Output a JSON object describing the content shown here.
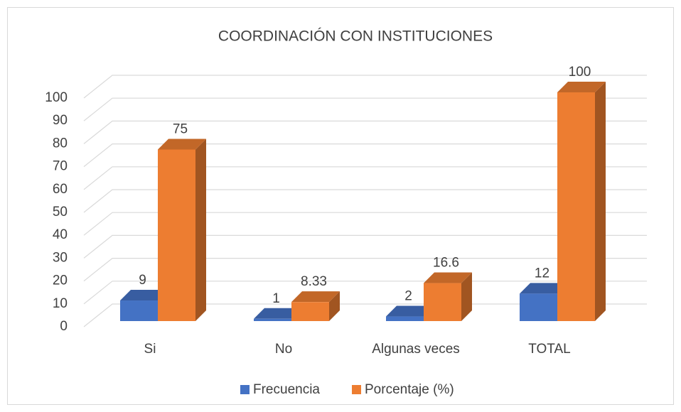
{
  "chart_data": {
    "type": "bar3d",
    "title": "COORDINACIÓN CON INSTITUCIONES",
    "categories": [
      "Si",
      "No",
      "Algunas veces",
      "TOTAL"
    ],
    "series": [
      {
        "name": "Frecuencia",
        "color": "#4472c4",
        "values": [
          9,
          1,
          2,
          12
        ]
      },
      {
        "name": "Porcentaje (%)",
        "color": "#ed7d31",
        "values": [
          75,
          8.33,
          16.6,
          100
        ]
      }
    ],
    "ylim": [
      0,
      100
    ],
    "yticks": [
      0,
      10,
      20,
      30,
      40,
      50,
      60,
      70,
      80,
      90,
      100
    ],
    "grid": true,
    "legend": "bottom"
  }
}
